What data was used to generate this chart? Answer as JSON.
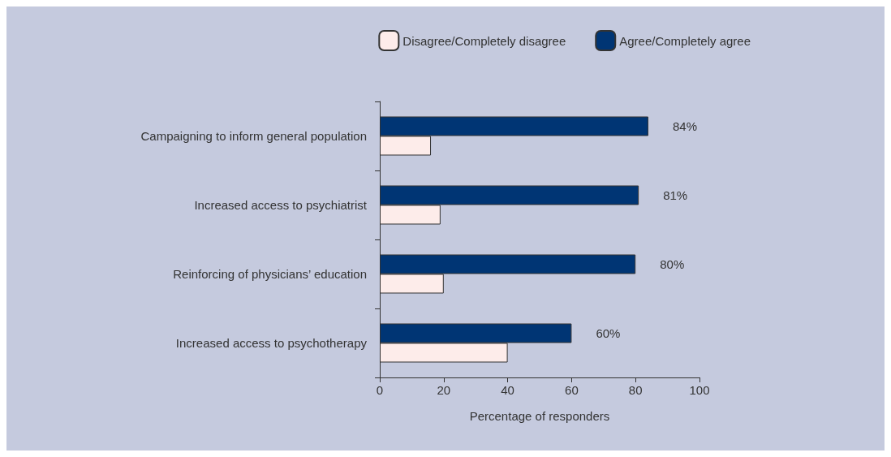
{
  "chart_data": {
    "type": "bar",
    "orientation": "horizontal",
    "xlabel": "Percentage of responders",
    "categories": [
      "Campaigning to inform general population",
      "Increased access to psychiatrist",
      "Reinforcing of physicians’ education",
      "Increased access to psychotherapy"
    ],
    "series": [
      {
        "name": "Disagree/Completely disagree",
        "color": "#fdecea",
        "values": [
          16,
          19,
          20,
          40
        ]
      },
      {
        "name": "Agree/Completely agree",
        "color": "#003574",
        "values": [
          84,
          81,
          80,
          60
        ],
        "value_labels": [
          "84%",
          "81%",
          "80%",
          "60%"
        ]
      }
    ],
    "xlim": [
      0,
      100
    ],
    "xticks": [
      0,
      20,
      40,
      60,
      80,
      100
    ],
    "grid": false,
    "legend": "top right"
  }
}
